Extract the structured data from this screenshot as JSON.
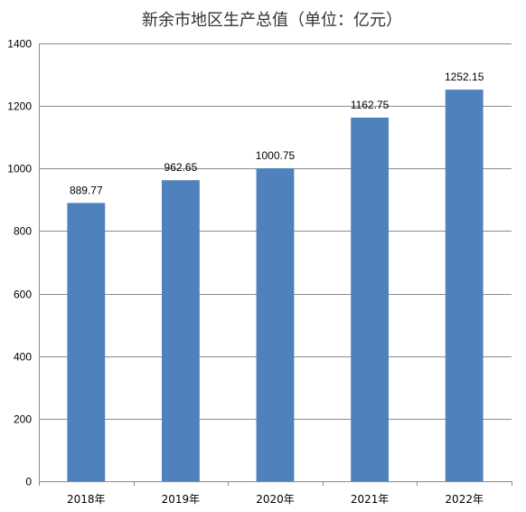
{
  "chart_data": {
    "type": "bar",
    "title": "新余市地区生产总值（单位：亿元）",
    "xlabel": "",
    "ylabel": "",
    "categories": [
      "2018年",
      "2019年",
      "2020年",
      "2021年",
      "2022年"
    ],
    "values": [
      889.77,
      962.65,
      1000.75,
      1162.75,
      1252.15
    ],
    "value_labels": [
      "889.77",
      "962.65",
      "1000.75",
      "1162.75",
      "1252.15"
    ],
    "ylim": [
      0,
      1400
    ],
    "yticks": [
      0,
      200,
      400,
      600,
      800,
      1000,
      1200,
      1400
    ],
    "grid": true,
    "legend": "none",
    "bar_color": "#4f81bd"
  }
}
